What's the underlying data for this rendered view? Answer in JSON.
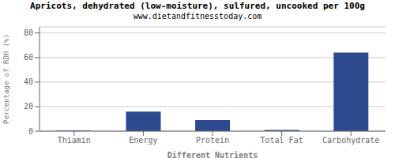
{
  "chart_data": {
    "type": "bar",
    "title": "Apricots, dehydrated (low-moisture), sulfured, uncooked per 100g",
    "subtitle": "www.dietandfitnesstoday.com",
    "categories": [
      "Thiamin",
      "Energy",
      "Protein",
      "Total Fat",
      "Carbohydrate"
    ],
    "values": [
      0.5,
      16,
      9,
      1,
      64
    ],
    "color": "#2e4a8e",
    "xlabel": "Different Nutrients",
    "ylabel": "Percentage of RDH (%)",
    "ylim": [
      0,
      85
    ],
    "yticks": [
      0,
      20,
      40,
      60,
      80
    ],
    "grid": true
  }
}
